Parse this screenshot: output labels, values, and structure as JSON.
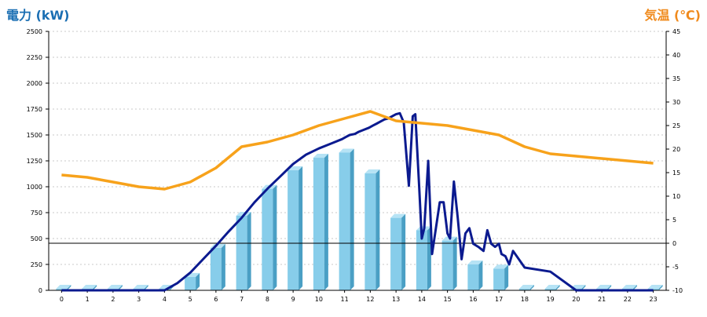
{
  "chart_data": {
    "type": "bar",
    "left_axis_title": "電力 (kW)",
    "right_axis_title": "気温 (℃)",
    "colors": {
      "bar_front": "#87cdea",
      "bar_side": "#4a9fc4",
      "bar_top": "#b6e3f5",
      "power_line": "#0b1a8f",
      "temp_line": "#f7a21b",
      "grid": "#c8c8c8",
      "left_title": "#1b6fb3",
      "right_title": "#f08a1c"
    },
    "categories": [
      "0",
      "1",
      "2",
      "3",
      "4",
      "5",
      "6",
      "7",
      "8",
      "9",
      "10",
      "11",
      "12",
      "13",
      "14",
      "15",
      "16",
      "17",
      "18",
      "19",
      "20",
      "21",
      "22",
      "23"
    ],
    "y_left": {
      "min": 0,
      "max": 2500,
      "ticks": [
        "0",
        "250",
        "500",
        "750",
        "1000",
        "1250",
        "1500",
        "1750",
        "2000",
        "2250",
        "2500"
      ]
    },
    "y_right": {
      "min": -10,
      "max": 45,
      "ticks": [
        "-10",
        "-5",
        "0",
        "5",
        "10",
        "15",
        "20",
        "25",
        "30",
        "35",
        "40",
        "45"
      ]
    },
    "grid": true,
    "series": [
      {
        "kind": "bar",
        "axis": "left",
        "values": [
          15,
          15,
          15,
          15,
          15,
          130,
          410,
          720,
          980,
          1160,
          1280,
          1330,
          1130,
          700,
          580,
          480,
          250,
          210,
          15,
          15,
          15,
          15,
          15,
          15
        ]
      },
      {
        "kind": "line",
        "axis": "left",
        "x": [
          0,
          1,
          2,
          3,
          4,
          4.5,
          5,
          5.5,
          6,
          6.5,
          7,
          7.5,
          8,
          8.5,
          9,
          9.5,
          10,
          10.5,
          10.9,
          11.05,
          11.2,
          11.4,
          11.55,
          11.75,
          11.95,
          12.1,
          12.25,
          12.4,
          12.55,
          12.7,
          12.85,
          13,
          13.15,
          13.3,
          13.5,
          13.65,
          13.75,
          13.9,
          14,
          14.1,
          14.25,
          14.4,
          14.55,
          14.7,
          14.85,
          15,
          15.1,
          15.25,
          15.4,
          15.55,
          15.7,
          15.85,
          16,
          16.2,
          16.4,
          16.55,
          16.7,
          16.85,
          17,
          17.1,
          17.25,
          17.4,
          17.55,
          18,
          19,
          20,
          21,
          22,
          23
        ],
        "values": [
          0,
          0,
          0,
          0,
          0,
          70,
          170,
          300,
          430,
          570,
          700,
          850,
          980,
          1100,
          1220,
          1310,
          1370,
          1420,
          1460,
          1480,
          1500,
          1510,
          1530,
          1550,
          1570,
          1590,
          1610,
          1630,
          1650,
          1660,
          1680,
          1700,
          1710,
          1620,
          1010,
          1680,
          1700,
          1000,
          500,
          600,
          1250,
          350,
          600,
          850,
          850,
          550,
          500,
          1050,
          700,
          300,
          550,
          600,
          450,
          420,
          380,
          580,
          450,
          420,
          450,
          350,
          330,
          250,
          380,
          220,
          180,
          0,
          0,
          0,
          0
        ]
      },
      {
        "kind": "line",
        "axis": "right",
        "values": [
          14.5,
          14,
          13,
          12,
          11.5,
          13,
          16,
          20.5,
          21.5,
          23,
          25,
          26.5,
          28,
          26,
          25.5,
          25,
          24,
          23,
          20.5,
          19,
          18.5,
          18,
          17.5,
          17
        ]
      }
    ]
  }
}
